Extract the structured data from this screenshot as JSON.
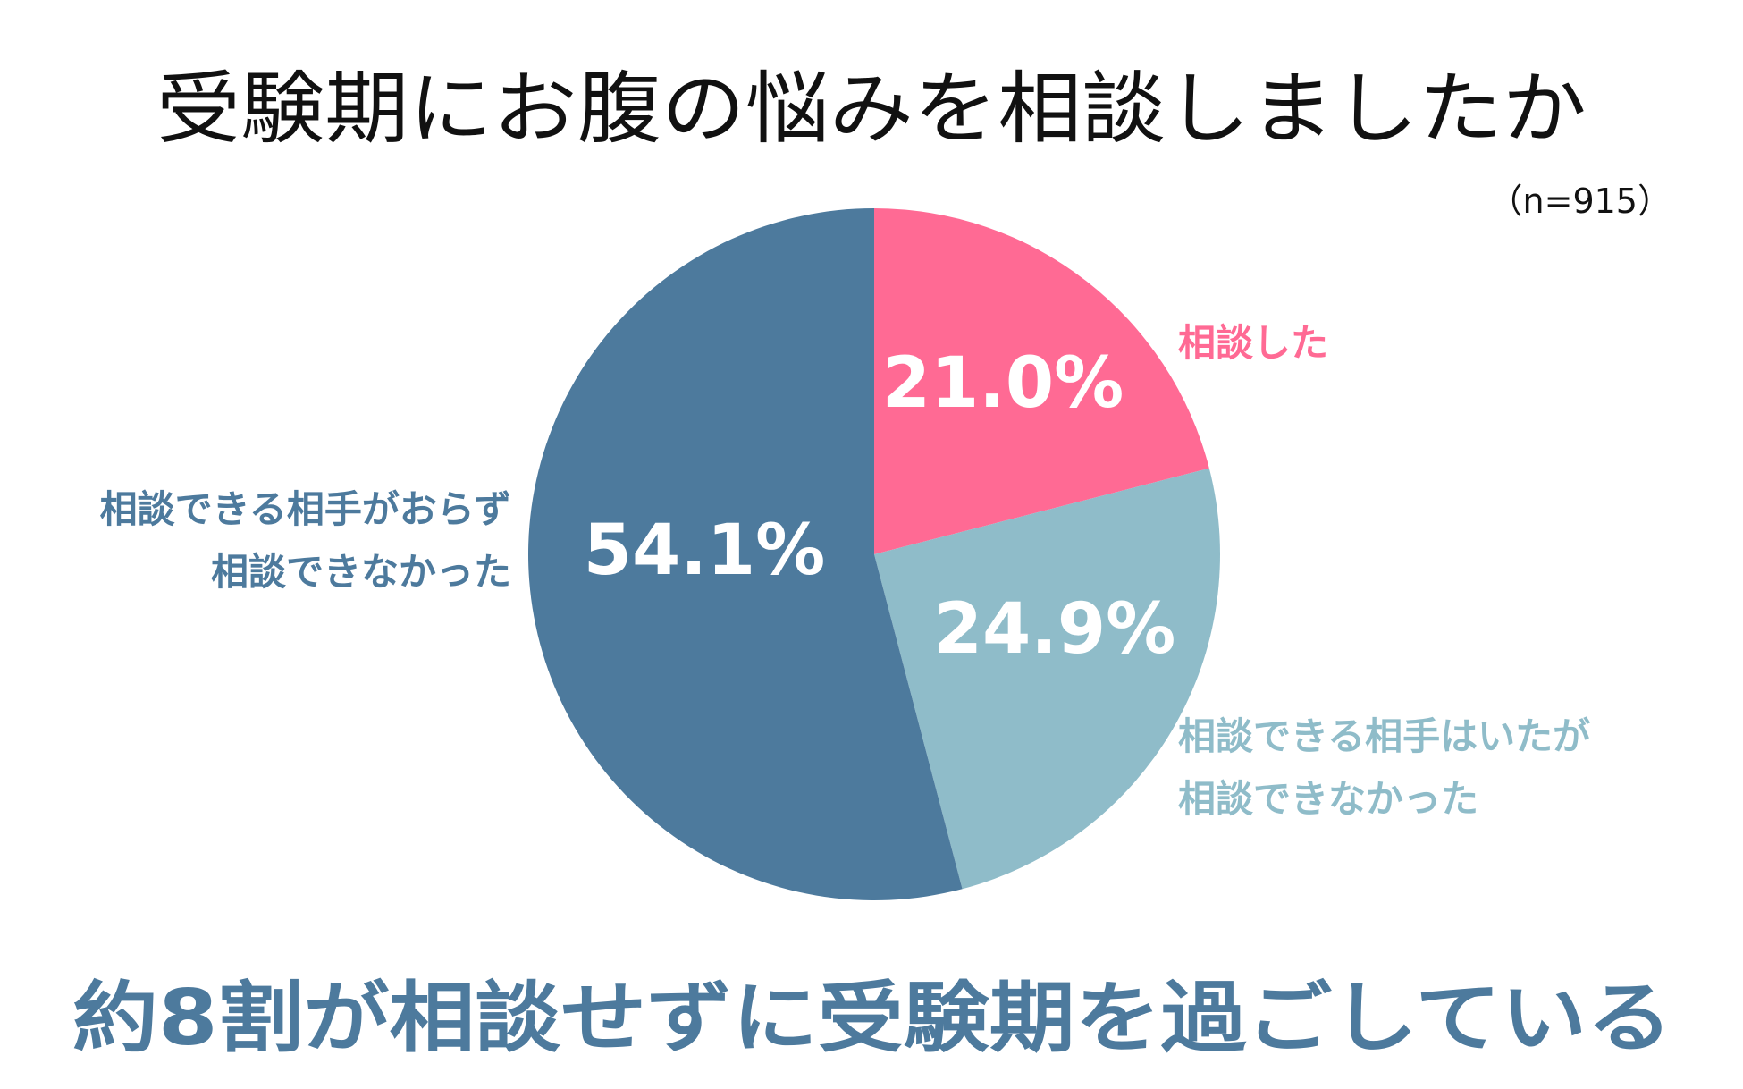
{
  "chart_data": {
    "type": "pie",
    "title": "受験期にお腹の悩みを相談しましたか",
    "sample_size": "（n=915）",
    "unit": "%",
    "slices": [
      {
        "label": [
          "相談した"
        ],
        "value": 21.0,
        "display": "21.0%",
        "color": "#ff6a94"
      },
      {
        "label": [
          "相談できる相手はいたが",
          "相談できなかった"
        ],
        "value": 24.9,
        "display": "24.9%",
        "color": "#8fbcc9"
      },
      {
        "label": [
          "相談できる相手がおらず",
          "相談できなかった"
        ],
        "value": 54.1,
        "display": "54.1%",
        "color": "#4d7a9d"
      }
    ],
    "start_angle": "12 o'clock",
    "direction": "clockwise",
    "legend": "none"
  },
  "summary": {
    "text": "約8割が相談せずに受験期を過ごしている",
    "color": "#4d7a9d"
  }
}
